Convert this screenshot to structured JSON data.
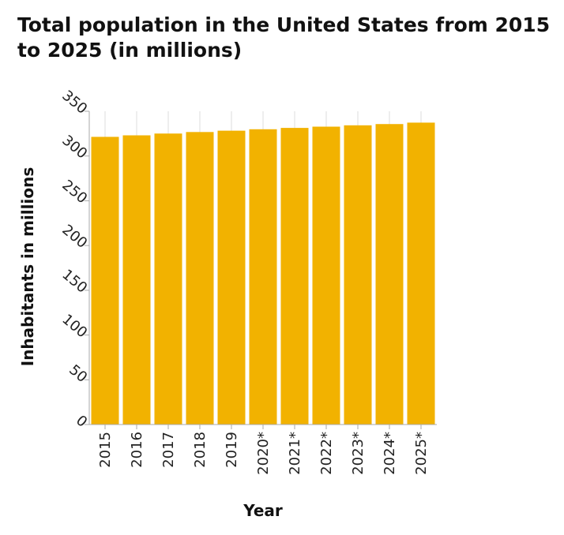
{
  "chart_data": {
    "type": "bar",
    "title": "Total population in the United States from 2015 to 2025 (in millions)",
    "xlabel": "Year",
    "ylabel": "Inhabitants in millions",
    "categories": [
      "2015",
      "2016",
      "2017",
      "2018",
      "2019",
      "2020*",
      "2021*",
      "2022*",
      "2023*",
      "2024*",
      "2025*"
    ],
    "values": [
      321.4,
      323.1,
      325.1,
      326.8,
      328.3,
      329.9,
      331.4,
      332.8,
      334.3,
      335.7,
      337.3
    ],
    "ylim": [
      0,
      350
    ],
    "yticks": [
      0,
      50,
      100,
      150,
      200,
      250,
      300,
      350
    ],
    "grid": "vertical",
    "bar_color": "#f2b200",
    "grid_color": "#dddddd",
    "axis_color": "#aaaaaa"
  }
}
